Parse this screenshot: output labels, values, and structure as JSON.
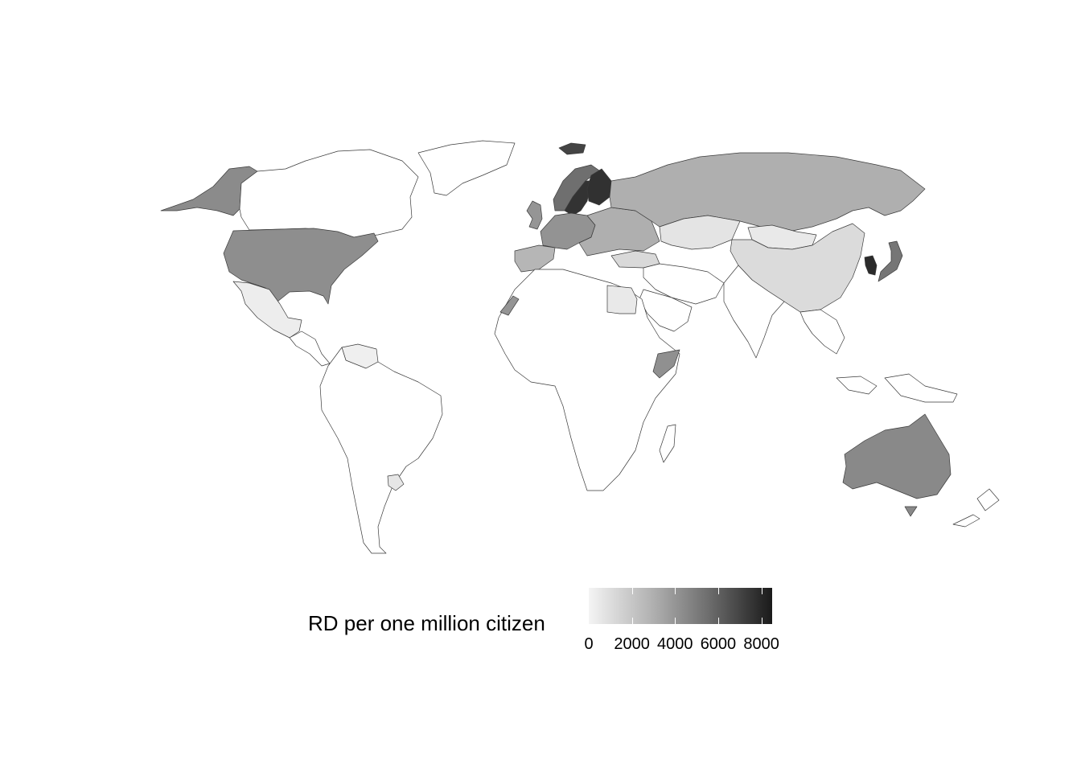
{
  "legend": {
    "title": "RD per one million citizen",
    "ticks": [
      {
        "value": 0,
        "label": "0"
      },
      {
        "value": 2000,
        "label": "2000"
      },
      {
        "value": 4000,
        "label": "4000"
      },
      {
        "value": 6000,
        "label": "6000"
      },
      {
        "value": 8000,
        "label": "8000"
      }
    ],
    "min": 0,
    "max": 8500,
    "low_color": "#f4f4f4",
    "high_color": "#1a1a1a"
  },
  "regions": [
    {
      "id": "alaska",
      "value": 4400
    },
    {
      "id": "canada",
      "value": null
    },
    {
      "id": "greenland",
      "value": null
    },
    {
      "id": "usa",
      "value": 4300
    },
    {
      "id": "mexico",
      "value": 300
    },
    {
      "id": "central-america",
      "value": null
    },
    {
      "id": "venezuela",
      "value": 200
    },
    {
      "id": "south-america",
      "value": null
    },
    {
      "id": "uruguay",
      "value": 600
    },
    {
      "id": "iceland",
      "value": 7000
    },
    {
      "id": "uk",
      "value": 4000
    },
    {
      "id": "norway",
      "value": 5500
    },
    {
      "id": "sweden",
      "value": 7600
    },
    {
      "id": "finland",
      "value": 7700
    },
    {
      "id": "western-europe",
      "value": 4100
    },
    {
      "id": "eastern-europe",
      "value": 3000
    },
    {
      "id": "iberia",
      "value": 2700
    },
    {
      "id": "russia",
      "value": 3000
    },
    {
      "id": "kazakhstan",
      "value": 700
    },
    {
      "id": "mongolia",
      "value": 500
    },
    {
      "id": "china",
      "value": 1100
    },
    {
      "id": "korea",
      "value": 7900
    },
    {
      "id": "japan",
      "value": 5200
    },
    {
      "id": "turkey",
      "value": 1200
    },
    {
      "id": "middle-east",
      "value": null
    },
    {
      "id": "saudi-arabia",
      "value": null
    },
    {
      "id": "egypt",
      "value": 500
    },
    {
      "id": "africa",
      "value": null
    },
    {
      "id": "western-sahara",
      "value": 4000
    },
    {
      "id": "somalia",
      "value": 4200
    },
    {
      "id": "india",
      "value": null
    },
    {
      "id": "southeast-asia",
      "value": null
    },
    {
      "id": "australia",
      "value": 4500
    },
    {
      "id": "new-zealand",
      "value": null
    },
    {
      "id": "madagascar",
      "value": null
    }
  ]
}
